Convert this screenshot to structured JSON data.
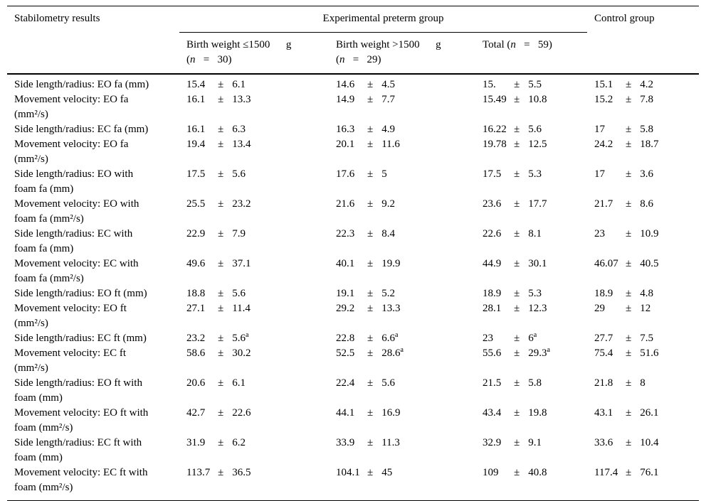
{
  "table": {
    "plus_minus": "±",
    "header": {
      "col_label": "Stabilometry results",
      "group_label": "Experimental preterm group",
      "control_label": "Control group",
      "subheaders": [
        {
          "lines": [
            "Birth weight ≤1500      g",
            "(n   =   30)"
          ]
        },
        {
          "lines": [
            "Birth weight >1500      g",
            "(n   =   29)"
          ]
        },
        {
          "lines": [
            "Total (n   =   59)"
          ]
        }
      ]
    },
    "rows": [
      {
        "label_lines": [
          "Side length/radius: EO fa (mm)"
        ],
        "values": [
          {
            "mean": "15.4",
            "sd": "6.1"
          },
          {
            "mean": "14.6",
            "sd": "4.5"
          },
          {
            "mean": "15.",
            "sd": "5.5"
          },
          {
            "mean": "15.1",
            "sd": "4.2"
          }
        ]
      },
      {
        "label_lines": [
          "Movement velocity: EO fa",
          "(mm²/s)"
        ],
        "values": [
          {
            "mean": "16.1",
            "sd": "13.3"
          },
          {
            "mean": "14.9",
            "sd": "7.7"
          },
          {
            "mean": "15.49",
            "sd": "10.8"
          },
          {
            "mean": "15.2",
            "sd": "7.8"
          }
        ]
      },
      {
        "label_lines": [
          "Side length/radius: EC fa (mm)"
        ],
        "values": [
          {
            "mean": "16.1",
            "sd": "6.3"
          },
          {
            "mean": "16.3",
            "sd": "4.9"
          },
          {
            "mean": "16.22",
            "sd": "5.6"
          },
          {
            "mean": "17",
            "sd": "5.8"
          }
        ]
      },
      {
        "label_lines": [
          "Movement velocity: EO fa",
          "(mm²/s)"
        ],
        "values": [
          {
            "mean": "19.4",
            "sd": "13.4"
          },
          {
            "mean": "20.1",
            "sd": "11.6"
          },
          {
            "mean": "19.78",
            "sd": "12.5"
          },
          {
            "mean": "24.2",
            "sd": "18.7"
          }
        ]
      },
      {
        "label_lines": [
          "Side length/radius: EO with",
          "foam fa (mm)"
        ],
        "values": [
          {
            "mean": "17.5",
            "sd": "5.6"
          },
          {
            "mean": "17.6",
            "sd": "5"
          },
          {
            "mean": "17.5",
            "sd": "5.3"
          },
          {
            "mean": "17",
            "sd": "3.6"
          }
        ]
      },
      {
        "label_lines": [
          "Movement velocity: EO with",
          "foam fa (mm²/s)"
        ],
        "values": [
          {
            "mean": "25.5",
            "sd": "23.2"
          },
          {
            "mean": "21.6",
            "sd": "9.2"
          },
          {
            "mean": "23.6",
            "sd": "17.7"
          },
          {
            "mean": "21.7",
            "sd": "8.6"
          }
        ]
      },
      {
        "label_lines": [
          "Side length/radius: EC with",
          "foam fa (mm)"
        ],
        "values": [
          {
            "mean": "22.9",
            "sd": "7.9"
          },
          {
            "mean": "22.3",
            "sd": "8.4"
          },
          {
            "mean": "22.6",
            "sd": "8.1"
          },
          {
            "mean": "23",
            "sd": "10.9"
          }
        ]
      },
      {
        "label_lines": [
          "Movement velocity: EC with",
          "foam fa (mm²/s)"
        ],
        "values": [
          {
            "mean": "49.6",
            "sd": "37.1"
          },
          {
            "mean": "40.1",
            "sd": "19.9"
          },
          {
            "mean": "44.9",
            "sd": "30.1"
          },
          {
            "mean": "46.07",
            "sd": "40.5"
          }
        ]
      },
      {
        "label_lines": [
          "Side length/radius: EO ft (mm)"
        ],
        "values": [
          {
            "mean": "18.8",
            "sd": "5.6"
          },
          {
            "mean": "19.1",
            "sd": "5.2"
          },
          {
            "mean": "18.9",
            "sd": "5.3"
          },
          {
            "mean": "18.9",
            "sd": "4.8"
          }
        ]
      },
      {
        "label_lines": [
          "Movement velocity: EO ft",
          "(mm²/s)"
        ],
        "values": [
          {
            "mean": "27.1",
            "sd": "11.4"
          },
          {
            "mean": "29.2",
            "sd": "13.3"
          },
          {
            "mean": "28.1",
            "sd": "12.3"
          },
          {
            "mean": "29",
            "sd": "12"
          }
        ]
      },
      {
        "label_lines": [
          "Side length/radius: EC ft (mm)"
        ],
        "values": [
          {
            "mean": "23.2",
            "sd": "5.6",
            "sup": "a"
          },
          {
            "mean": "22.8",
            "sd": "6.6",
            "sup": "a"
          },
          {
            "mean": "23",
            "sd": "6",
            "sup": "a"
          },
          {
            "mean": "27.7",
            "sd": "7.5"
          }
        ]
      },
      {
        "label_lines": [
          "Movement velocity: EC ft",
          "(mm²/s)"
        ],
        "values": [
          {
            "mean": "58.6",
            "sd": "30.2"
          },
          {
            "mean": "52.5",
            "sd": "28.6",
            "sup": "a"
          },
          {
            "mean": "55.6",
            "sd": "29.3",
            "sup": "a"
          },
          {
            "mean": "75.4",
            "sd": "51.6"
          }
        ]
      },
      {
        "label_lines": [
          "Side length/radius: EO ft with",
          "foam (mm)"
        ],
        "values": [
          {
            "mean": "20.6",
            "sd": "6.1"
          },
          {
            "mean": "22.4",
            "sd": "5.6"
          },
          {
            "mean": "21.5",
            "sd": "5.8"
          },
          {
            "mean": "21.8",
            "sd": "8"
          }
        ]
      },
      {
        "label_lines": [
          "Movement velocity: EO ft with",
          "foam (mm²/s)"
        ],
        "values": [
          {
            "mean": "42.7",
            "sd": "22.6"
          },
          {
            "mean": "44.1",
            "sd": "16.9"
          },
          {
            "mean": "43.4",
            "sd": "19.8"
          },
          {
            "mean": "43.1",
            "sd": "26.1"
          }
        ]
      },
      {
        "label_lines": [
          "Side length/radius: EC ft with",
          "foam (mm)"
        ],
        "values": [
          {
            "mean": "31.9",
            "sd": "6.2"
          },
          {
            "mean": "33.9",
            "sd": "11.3"
          },
          {
            "mean": "32.9",
            "sd": "9.1"
          },
          {
            "mean": "33.6",
            "sd": "10.4"
          }
        ]
      },
      {
        "label_lines": [
          "Movement velocity: EC ft with",
          "foam (mm²/s)"
        ],
        "values": [
          {
            "mean": "113.7",
            "sd": "36.5"
          },
          {
            "mean": "104.1",
            "sd": "45"
          },
          {
            "mean": "109",
            "sd": "40.8"
          },
          {
            "mean": "117.4",
            "sd": "76.1"
          }
        ]
      }
    ]
  }
}
